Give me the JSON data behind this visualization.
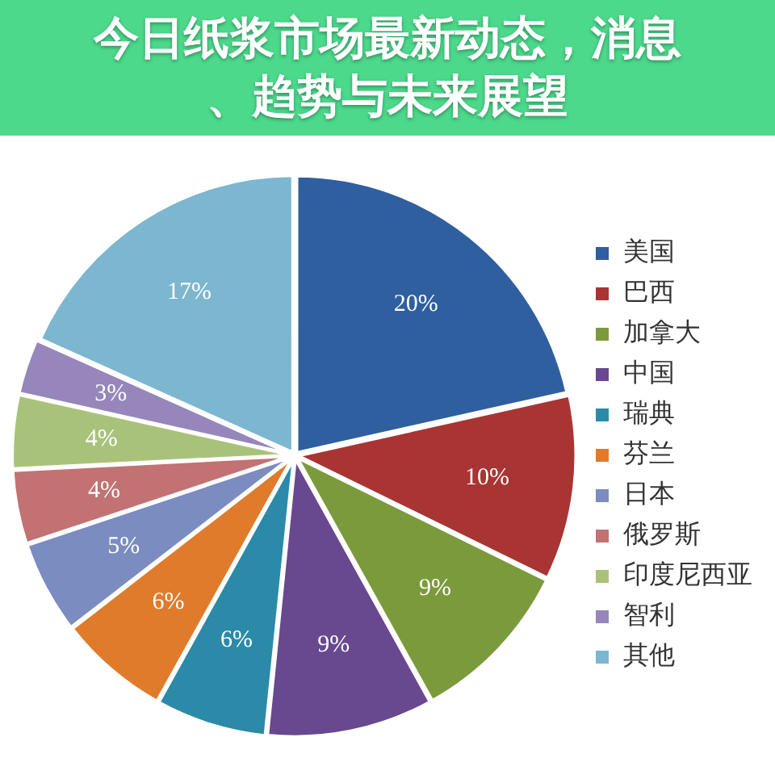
{
  "chart_data": {
    "type": "pie",
    "title": "今日纸浆市场最新动态，消息、趋势与未来展望",
    "categories": [
      "美国",
      "巴西",
      "加拿大",
      "中国",
      "瑞典",
      "芬兰",
      "日本",
      "俄罗斯",
      "印度尼西亚",
      "智利",
      "其他"
    ],
    "values": [
      20,
      10,
      9,
      9,
      6,
      6,
      5,
      4,
      4,
      3,
      17
    ],
    "colors": [
      "#2f5f9e",
      "#a83533",
      "#7b9a3c",
      "#68488f",
      "#2a8aa8",
      "#e07b2c",
      "#7a8cc0",
      "#c27272",
      "#a9c27a",
      "#9686bb",
      "#7db6cf"
    ],
    "value_labels": [
      "20%",
      "10%",
      "9%",
      "9%",
      "6%",
      "6%",
      "5%",
      "4%",
      "4%",
      "3%",
      "17%"
    ],
    "legend": "right"
  }
}
